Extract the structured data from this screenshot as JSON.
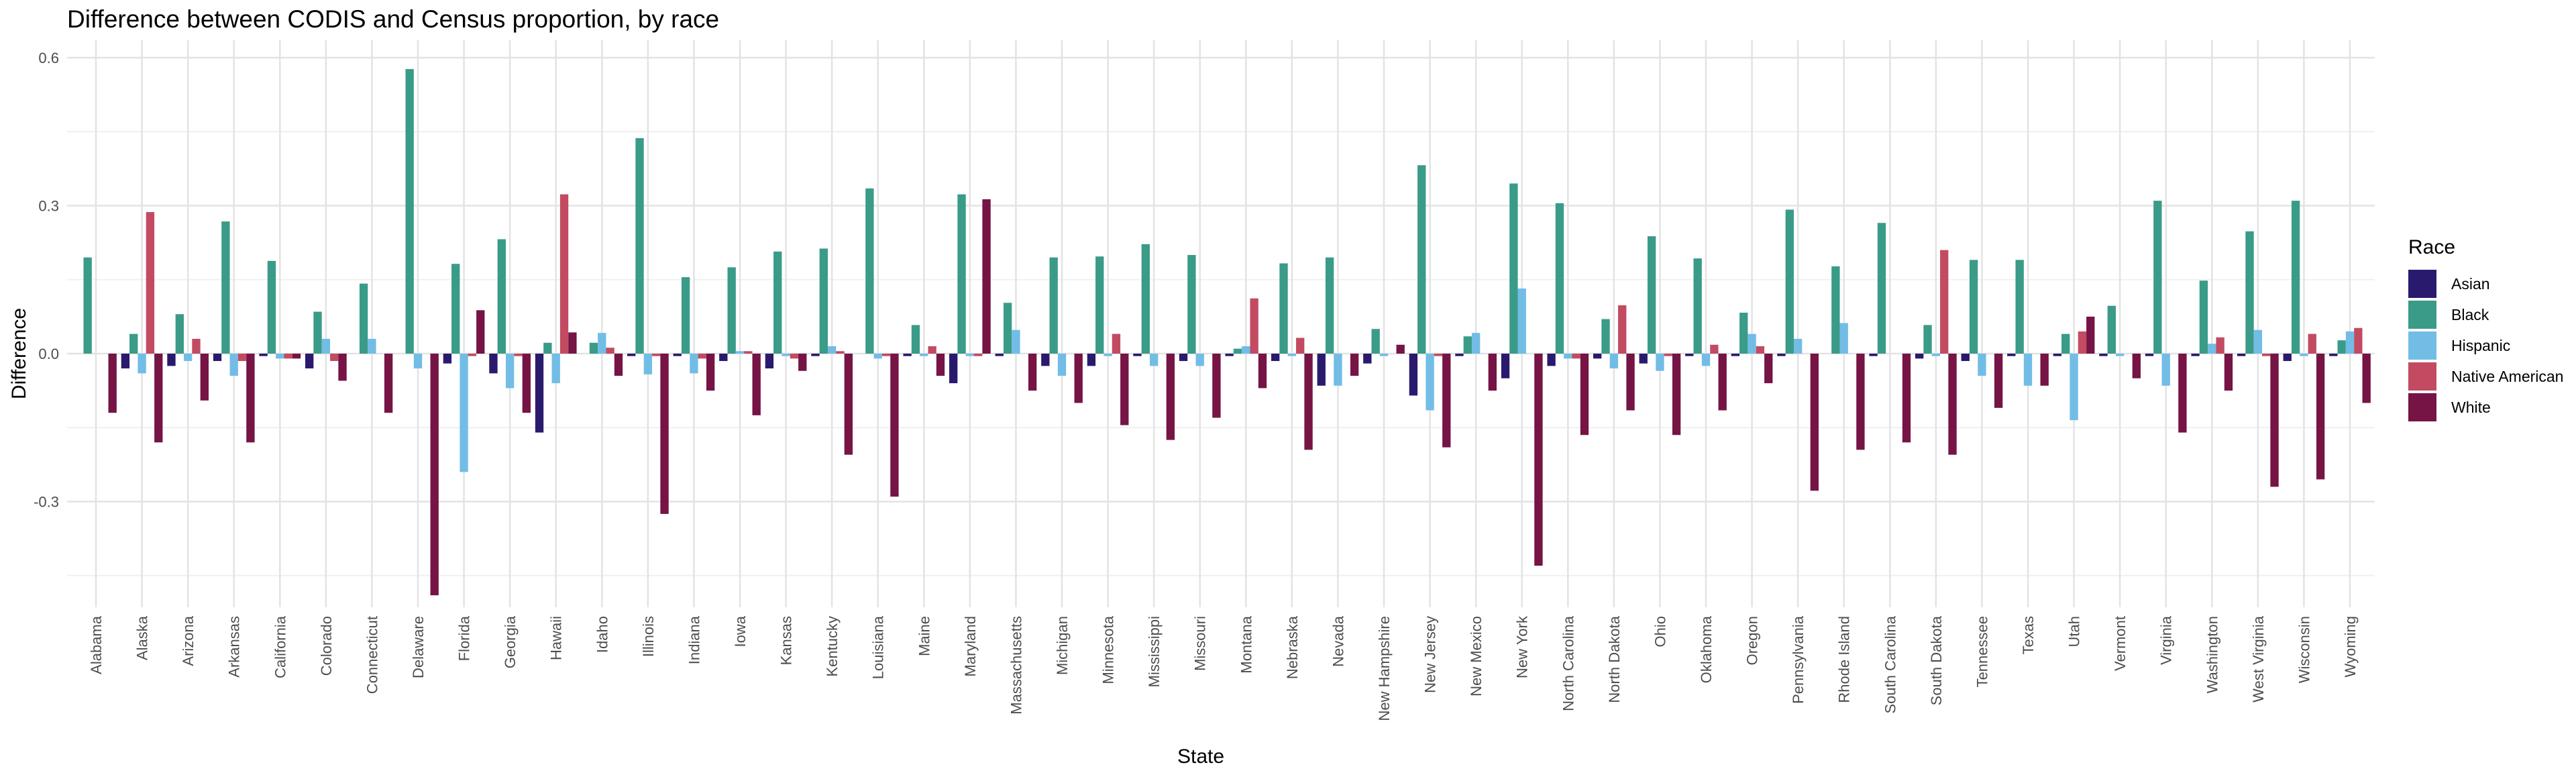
{
  "chart_data": {
    "type": "bar",
    "title": "Difference between CODIS and Census proportion, by race",
    "xlabel": "State",
    "ylabel": "Difference",
    "ylim": [
      -0.56,
      0.63
    ],
    "yticks": [
      -0.3,
      0.0,
      0.3,
      0.6
    ],
    "ytick_labels": [
      "-0.3",
      "0.0",
      "0.3",
      "0.6"
    ],
    "grid": true,
    "legend_title": "Race",
    "legend_position": "right",
    "categories": [
      "Alabama",
      "Alaska",
      "Arizona",
      "Arkansas",
      "California",
      "Colorado",
      "Connecticut",
      "Delaware",
      "Florida",
      "Georgia",
      "Hawaii",
      "Idaho",
      "Illinois",
      "Indiana",
      "Iowa",
      "Kansas",
      "Kentucky",
      "Louisiana",
      "Maine",
      "Maryland",
      "Massachusetts",
      "Michigan",
      "Minnesota",
      "Mississippi",
      "Missouri",
      "Montana",
      "Nebraska",
      "Nevada",
      "New Hampshire",
      "New Jersey",
      "New Mexico",
      "New York",
      "North Carolina",
      "North Dakota",
      "Ohio",
      "Oklahoma",
      "Oregon",
      "Pennsylvania",
      "Rhode  Island",
      "South Carolina",
      "South Dakota",
      "Tennessee",
      "Texas",
      "Utah",
      "Vermont",
      "Virginia",
      "Washington",
      "West Virginia",
      "Wisconsin",
      "Wyoming"
    ],
    "series": [
      {
        "name": "Asian",
        "color": "#2a1a6e",
        "values": [
          null,
          -0.03,
          -0.025,
          -0.015,
          -0.005,
          -0.03,
          null,
          null,
          -0.02,
          -0.04,
          -0.16,
          null,
          -0.005,
          -0.005,
          -0.015,
          -0.03,
          -0.005,
          null,
          -0.005,
          -0.06,
          -0.005,
          -0.025,
          -0.025,
          -0.005,
          -0.015,
          -0.005,
          -0.015,
          -0.065,
          -0.02,
          -0.085,
          -0.005,
          -0.05,
          -0.025,
          -0.01,
          -0.02,
          -0.005,
          -0.005,
          -0.005,
          null,
          -0.005,
          -0.01,
          -0.015,
          -0.005,
          -0.005,
          -0.005,
          -0.005,
          -0.005,
          -0.005,
          -0.015,
          -0.005
        ]
      },
      {
        "name": "Black",
        "color": "#3a9b88",
        "values": [
          0.195,
          0.04,
          0.08,
          0.268,
          0.188,
          0.085,
          0.142,
          0.577,
          0.182,
          0.232,
          0.022,
          0.022,
          0.437,
          0.155,
          0.175,
          0.207,
          0.213,
          0.335,
          0.058,
          0.323,
          0.103,
          0.195,
          0.197,
          0.222,
          0.2,
          0.01,
          0.183,
          0.195,
          0.05,
          0.382,
          0.035,
          0.345,
          0.305,
          0.07,
          0.238,
          0.193,
          0.083,
          0.292,
          0.177,
          0.265,
          0.058,
          0.19,
          0.19,
          0.04,
          0.097,
          0.31,
          0.148,
          0.248,
          0.31,
          0.027
        ]
      },
      {
        "name": "Hispanic",
        "color": "#72bde6",
        "values": [
          null,
          -0.04,
          -0.015,
          -0.045,
          -0.01,
          0.03,
          0.03,
          -0.03,
          -0.24,
          -0.07,
          -0.06,
          0.042,
          -0.042,
          -0.04,
          0.005,
          -0.005,
          0.015,
          -0.01,
          -0.005,
          -0.005,
          0.048,
          -0.045,
          -0.005,
          -0.025,
          -0.025,
          0.015,
          -0.005,
          -0.065,
          -0.005,
          -0.115,
          0.042,
          0.132,
          -0.01,
          -0.03,
          -0.035,
          -0.025,
          0.04,
          0.03,
          0.062,
          null,
          -0.005,
          -0.045,
          -0.065,
          -0.135,
          -0.005,
          -0.065,
          0.02,
          0.048,
          -0.005,
          0.045
        ]
      },
      {
        "name": "Native American",
        "color": "#c24b62",
        "values": [
          null,
          0.287,
          0.03,
          -0.015,
          -0.01,
          -0.015,
          null,
          null,
          -0.005,
          -0.005,
          0.323,
          0.012,
          -0.005,
          -0.01,
          0.005,
          -0.01,
          0.005,
          -0.005,
          0.015,
          -0.005,
          null,
          null,
          0.04,
          null,
          null,
          0.112,
          0.032,
          null,
          null,
          -0.005,
          null,
          null,
          -0.01,
          0.098,
          -0.005,
          0.018,
          0.015,
          null,
          null,
          null,
          0.21,
          null,
          null,
          0.045,
          null,
          null,
          0.033,
          -0.005,
          0.04,
          0.052
        ]
      },
      {
        "name": "White",
        "color": "#751445",
        "values": [
          -0.12,
          -0.18,
          -0.095,
          -0.18,
          -0.01,
          -0.055,
          -0.12,
          -0.49,
          0.088,
          -0.12,
          0.043,
          -0.045,
          -0.325,
          -0.075,
          -0.125,
          -0.035,
          -0.205,
          -0.29,
          -0.045,
          0.313,
          -0.075,
          -0.1,
          -0.145,
          -0.175,
          -0.13,
          -0.07,
          -0.195,
          -0.045,
          0.018,
          -0.19,
          -0.075,
          -0.43,
          -0.165,
          -0.115,
          -0.165,
          -0.115,
          -0.06,
          -0.278,
          -0.195,
          -0.18,
          -0.205,
          -0.11,
          -0.065,
          0.075,
          -0.05,
          -0.16,
          -0.075,
          -0.27,
          -0.255,
          -0.1
        ]
      }
    ]
  }
}
